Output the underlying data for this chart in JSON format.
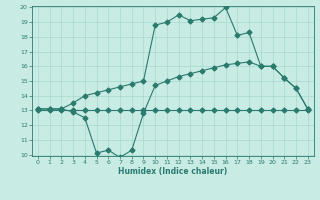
{
  "x_main": [
    0,
    1,
    2,
    3,
    4,
    5,
    6,
    7,
    8,
    9,
    10,
    11,
    12,
    13,
    14,
    15,
    16,
    17,
    18,
    19,
    20,
    21,
    22,
    23
  ],
  "y_main": [
    13.1,
    13.1,
    13.1,
    13.5,
    14.0,
    14.2,
    14.4,
    14.6,
    14.8,
    15.0,
    18.8,
    19.0,
    19.5,
    19.1,
    19.2,
    19.3,
    20.0,
    18.1,
    18.3,
    16.0,
    16.0,
    15.2,
    14.5,
    13.1
  ],
  "x_flat": [
    0,
    1,
    2,
    3,
    4,
    5,
    6,
    7,
    8,
    9,
    10,
    11,
    12,
    13,
    14,
    15,
    16,
    17,
    18,
    19,
    20,
    21,
    22,
    23
  ],
  "y_flat": [
    13.0,
    13.0,
    13.0,
    13.0,
    13.0,
    13.0,
    13.0,
    13.0,
    13.0,
    13.0,
    13.0,
    13.0,
    13.0,
    13.0,
    13.0,
    13.0,
    13.0,
    13.0,
    13.0,
    13.0,
    13.0,
    13.0,
    13.0,
    13.0
  ],
  "x_dip": [
    0,
    1,
    2,
    3,
    4,
    5,
    6,
    7,
    8,
    9,
    10,
    11,
    12,
    13,
    14,
    15,
    16,
    17,
    18,
    19,
    20,
    21,
    22,
    23
  ],
  "y_dip": [
    13.1,
    13.1,
    13.1,
    12.9,
    12.5,
    10.1,
    10.3,
    9.8,
    10.3,
    12.8,
    14.7,
    15.0,
    15.3,
    15.5,
    15.7,
    15.9,
    16.1,
    16.2,
    16.3,
    16.0,
    16.0,
    15.2,
    14.5,
    13.1
  ],
  "line_color": "#2a7a6e",
  "bg_color": "#c8ebe4",
  "grid_color": "#a8d8ce",
  "xlabel": "Humidex (Indice chaleur)",
  "ylim": [
    10,
    20
  ],
  "xlim": [
    -0.5,
    23.5
  ],
  "yticks": [
    10,
    11,
    12,
    13,
    14,
    15,
    16,
    17,
    18,
    19,
    20
  ],
  "xticks": [
    0,
    1,
    2,
    3,
    4,
    5,
    6,
    7,
    8,
    9,
    10,
    11,
    12,
    13,
    14,
    15,
    16,
    17,
    18,
    19,
    20,
    21,
    22,
    23
  ]
}
